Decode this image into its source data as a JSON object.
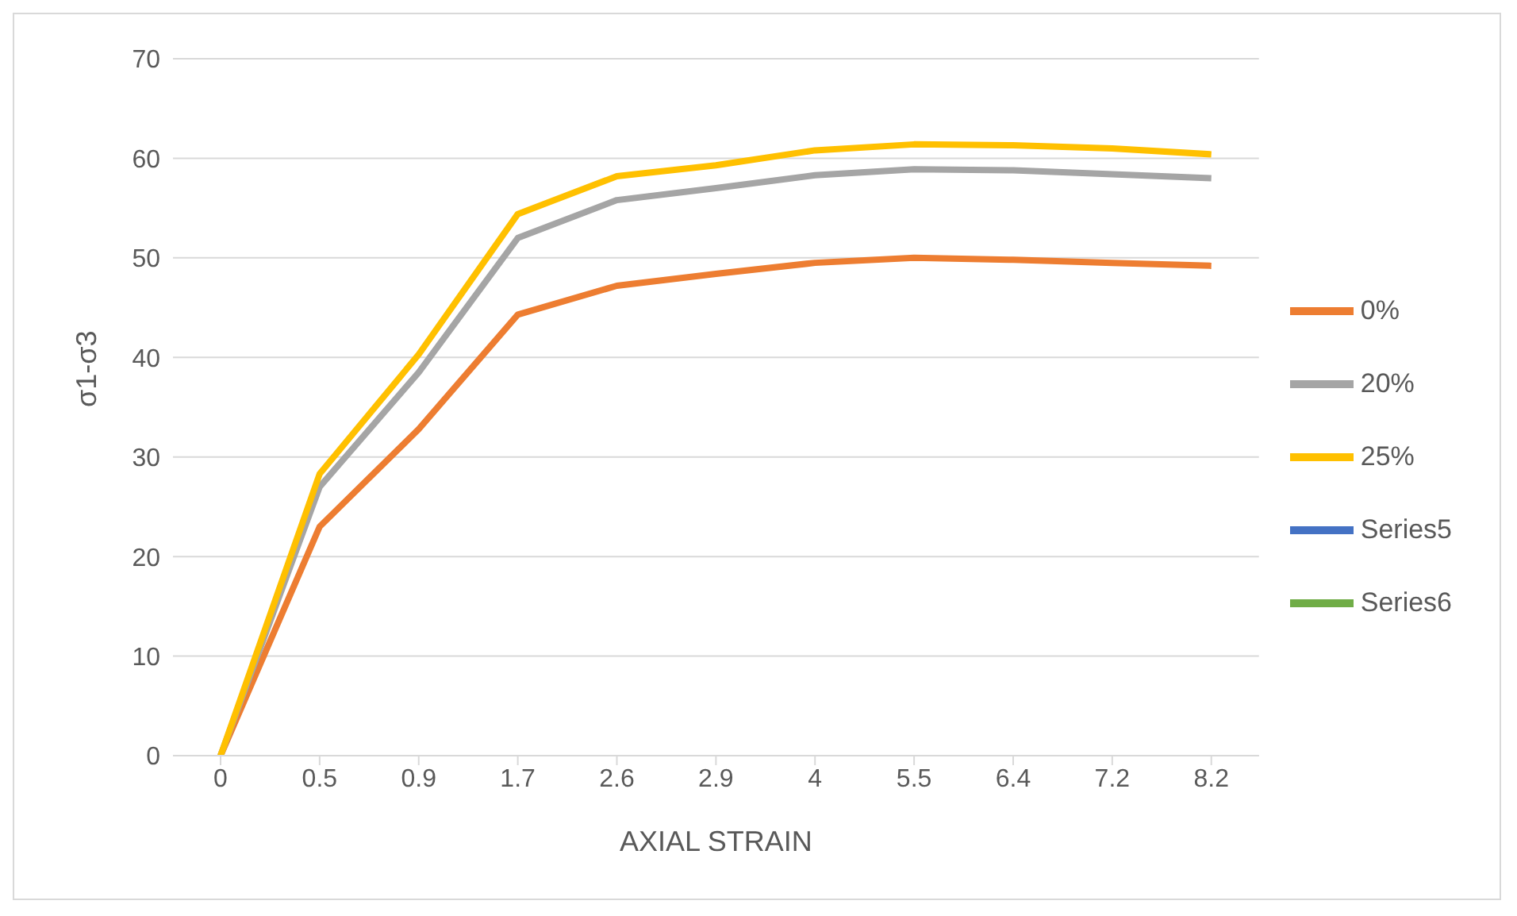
{
  "chart_data": {
    "type": "line",
    "xlabel": "AXIAL STRAIN",
    "ylabel": "σ1-σ3",
    "categories": [
      "0",
      "0.5",
      "0.9",
      "1.7",
      "2.6",
      "2.9",
      "4",
      "5.5",
      "6.4",
      "7.2",
      "8.2"
    ],
    "series": [
      {
        "name": "0%",
        "color": "#ed7d31",
        "values": [
          0,
          23,
          32.8,
          44.3,
          47.2,
          48.4,
          49.5,
          50,
          49.8,
          49.5,
          49.2
        ]
      },
      {
        "name": "20%",
        "color": "#a5a5a5",
        "values": [
          0,
          27,
          38.5,
          52,
          55.8,
          57,
          58.3,
          58.9,
          58.8,
          58.4,
          58
        ]
      },
      {
        "name": "25%",
        "color": "#ffc000",
        "values": [
          0,
          28.3,
          40.3,
          54.4,
          58.2,
          59.3,
          60.8,
          61.4,
          61.3,
          61,
          60.4
        ]
      },
      {
        "name": "Series5",
        "color": "#4472c4",
        "values": [
          null,
          null,
          null,
          null,
          null,
          null,
          null,
          null,
          null,
          null,
          null
        ]
      },
      {
        "name": "Series6",
        "color": "#70ad47",
        "values": [
          null,
          null,
          null,
          null,
          null,
          null,
          null,
          null,
          null,
          null,
          null
        ]
      }
    ],
    "ylim": [
      0,
      70
    ],
    "yticks": [
      0,
      10,
      20,
      30,
      40,
      50,
      60,
      70
    ],
    "grid": "y",
    "legend": "right",
    "marker": "none",
    "line_style": "solid"
  }
}
